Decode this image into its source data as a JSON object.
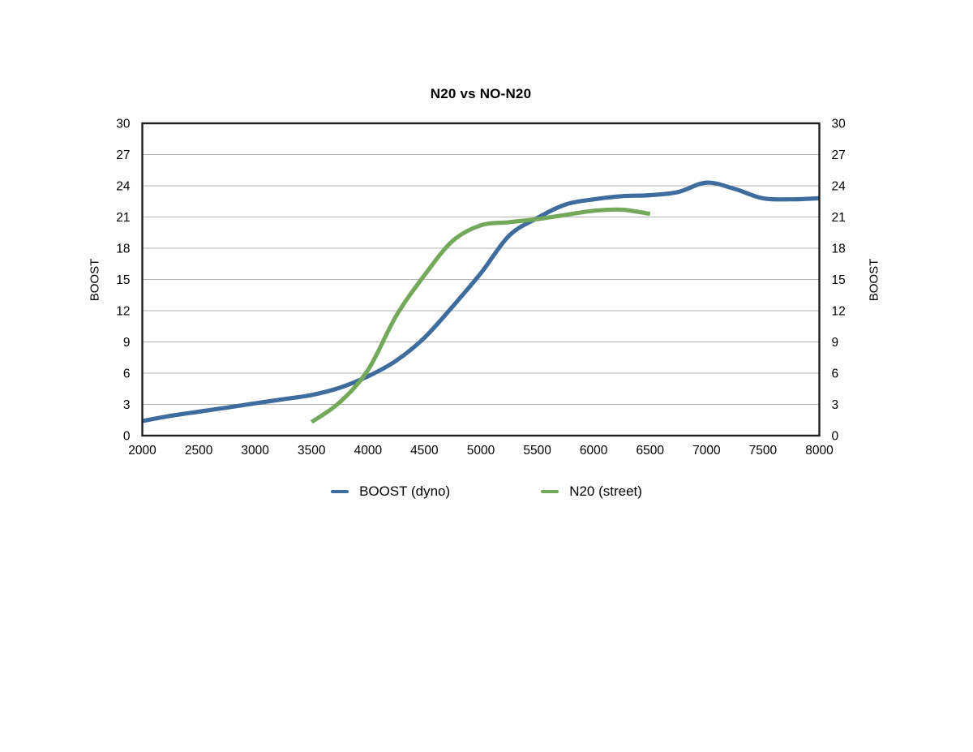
{
  "chart_data": {
    "type": "line",
    "title": "N20 vs NO-N20",
    "xlabel": "",
    "ylabel_left": "BOOST",
    "ylabel_right": "BOOST",
    "xlim": [
      2000,
      8000
    ],
    "ylim": [
      0,
      30
    ],
    "x_ticks": [
      2000,
      2500,
      3000,
      3500,
      4000,
      4500,
      5000,
      5500,
      6000,
      6500,
      7000,
      7500,
      8000
    ],
    "y_ticks": [
      0,
      3,
      6,
      9,
      12,
      15,
      18,
      21,
      24,
      27,
      30
    ],
    "grid": "horizontal-only",
    "legend_position": "bottom-center",
    "colors": {
      "border": "#1f1f1f",
      "gridline": "#b3b3b3",
      "background": "#ffffff",
      "text": "#000000"
    },
    "series": [
      {
        "name": "BOOST (dyno)",
        "color": "#3e6d9d",
        "points": [
          [
            2000,
            1.4
          ],
          [
            2250,
            1.9
          ],
          [
            2500,
            2.3
          ],
          [
            2750,
            2.7
          ],
          [
            3000,
            3.1
          ],
          [
            3250,
            3.5
          ],
          [
            3500,
            3.9
          ],
          [
            3750,
            4.6
          ],
          [
            4000,
            5.7
          ],
          [
            4250,
            7.2
          ],
          [
            4500,
            9.4
          ],
          [
            4750,
            12.4
          ],
          [
            5000,
            15.6
          ],
          [
            5250,
            19.2
          ],
          [
            5500,
            20.9
          ],
          [
            5750,
            22.2
          ],
          [
            6000,
            22.7
          ],
          [
            6250,
            23.0
          ],
          [
            6500,
            23.1
          ],
          [
            6750,
            23.4
          ],
          [
            7000,
            24.3
          ],
          [
            7250,
            23.7
          ],
          [
            7500,
            22.8
          ],
          [
            7750,
            22.7
          ],
          [
            8000,
            22.8
          ]
        ]
      },
      {
        "name": "N20 (street)",
        "color": "#74a95c",
        "points": [
          [
            3500,
            1.3
          ],
          [
            3750,
            3.2
          ],
          [
            4000,
            6.3
          ],
          [
            4250,
            11.5
          ],
          [
            4500,
            15.4
          ],
          [
            4750,
            18.7
          ],
          [
            5000,
            20.2
          ],
          [
            5250,
            20.5
          ],
          [
            5500,
            20.8
          ],
          [
            5750,
            21.2
          ],
          [
            6000,
            21.6
          ],
          [
            6250,
            21.7
          ],
          [
            6500,
            21.3
          ]
        ]
      }
    ]
  }
}
